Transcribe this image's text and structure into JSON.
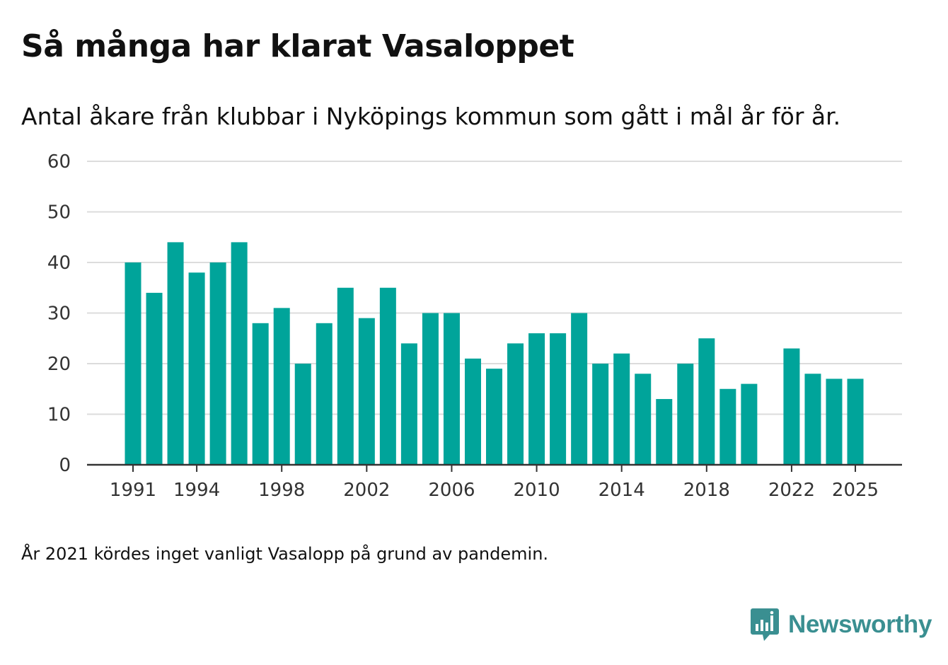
{
  "title": "Så många har klarat Vasaloppet",
  "subtitle": "Antal åkare från klubbar i Nyköpings kommun som gått i mål år för år.",
  "note": "År 2021 kördes inget vanligt Vasalopp på grund av pandemin.",
  "brand": {
    "name": "Newsworthy",
    "color": "#3a8f91"
  },
  "chart_data": {
    "type": "bar",
    "title": "Så många har klarat Vasaloppet",
    "subtitle": "Antal åkare från klubbar i Nyköpings kommun som gått i mål år för år.",
    "xlabel": "",
    "ylabel": "",
    "bar_color": "#00a49a",
    "ylim": [
      0,
      60
    ],
    "yticks": [
      0,
      10,
      20,
      30,
      40,
      50,
      60
    ],
    "xticks": [
      "1991",
      "1994",
      "1998",
      "2002",
      "2006",
      "2010",
      "2014",
      "2018",
      "2022",
      "2025"
    ],
    "categories": [
      1991,
      1992,
      1993,
      1994,
      1995,
      1996,
      1997,
      1998,
      1999,
      2000,
      2001,
      2002,
      2003,
      2004,
      2005,
      2006,
      2007,
      2008,
      2009,
      2010,
      2011,
      2012,
      2013,
      2014,
      2015,
      2016,
      2017,
      2018,
      2019,
      2020,
      2021,
      2022,
      2023,
      2024,
      2025
    ],
    "values": [
      40,
      34,
      44,
      38,
      40,
      44,
      28,
      31,
      20,
      28,
      35,
      29,
      35,
      24,
      30,
      30,
      21,
      19,
      24,
      26,
      26,
      30,
      20,
      22,
      18,
      13,
      20,
      25,
      15,
      16,
      null,
      23,
      18,
      17,
      17
    ],
    "grid": true,
    "legend": "none"
  }
}
